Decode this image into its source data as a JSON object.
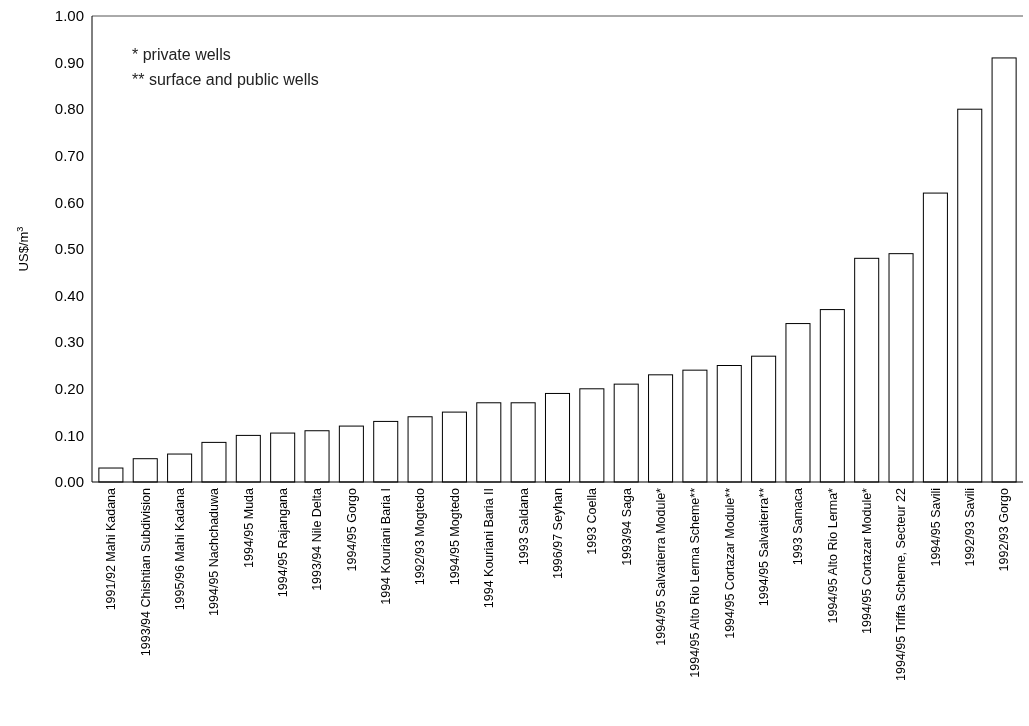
{
  "chart_data": {
    "type": "bar",
    "ylabel": "US$/m$^{3}$",
    "annotations": [
      "* private wells",
      "** surface and public wells"
    ],
    "categories": [
      "1991/92 Mahi Kadana",
      "1993/94 Chishtian Subdivision",
      "1995/96 Mahi Kadana",
      "1994/95 Nachchaduwa",
      "1994/95 Muda",
      "1994/95 Rajangana",
      "1993/94 Nile Delta",
      "1994/95 Gorgo",
      "1994 Kouriani Baria I",
      "1992/93 Mogtedo",
      "1994/95 Mogtedo",
      "1994 Kouriani Baria II",
      "1993 Saldana",
      "1996/97 Seyhan",
      "1993 Coella",
      "1993/94 Saga",
      "1994/95 Salvatierra Module*",
      "1994/95 Alto Rio Lerma Scheme**",
      "1994/95 Cortazar Module**",
      "1994/95 Salvatierra**",
      "1993 Samaca",
      "1994/95 Alto Rio Lerma*",
      "1994/95 Cortazar Module*",
      "1994/95 Triffa Scheme, Secteur 22",
      "1994/95 Savili",
      "1992/93 Savili",
      "1992/93 Gorgo"
    ],
    "values": [
      0.03,
      0.05,
      0.06,
      0.085,
      0.1,
      0.105,
      0.11,
      0.12,
      0.13,
      0.14,
      0.15,
      0.17,
      0.17,
      0.19,
      0.2,
      0.21,
      0.23,
      0.24,
      0.25,
      0.27,
      0.34,
      0.37,
      0.48,
      0.49,
      0.62,
      0.8,
      0.91
    ],
    "color": "#ffffff",
    "ylim": [
      0,
      1
    ],
    "yticks": [
      {
        "value": 0,
        "label": "0.00"
      },
      {
        "value": 0.1,
        "label": "0.10"
      },
      {
        "value": 0.2,
        "label": "0.20"
      },
      {
        "value": 0.3,
        "label": "0.30"
      },
      {
        "value": 0.4,
        "label": "0.40"
      },
      {
        "value": 0.5,
        "label": "0.50"
      },
      {
        "value": 0.6,
        "label": "0.60"
      },
      {
        "value": 0.7,
        "label": "0.70"
      },
      {
        "value": 0.8,
        "label": "0.80"
      },
      {
        "value": 0.9,
        "label": "0.90"
      },
      {
        "value": 1,
        "label": "1.00"
      }
    ],
    "grid": false
  }
}
